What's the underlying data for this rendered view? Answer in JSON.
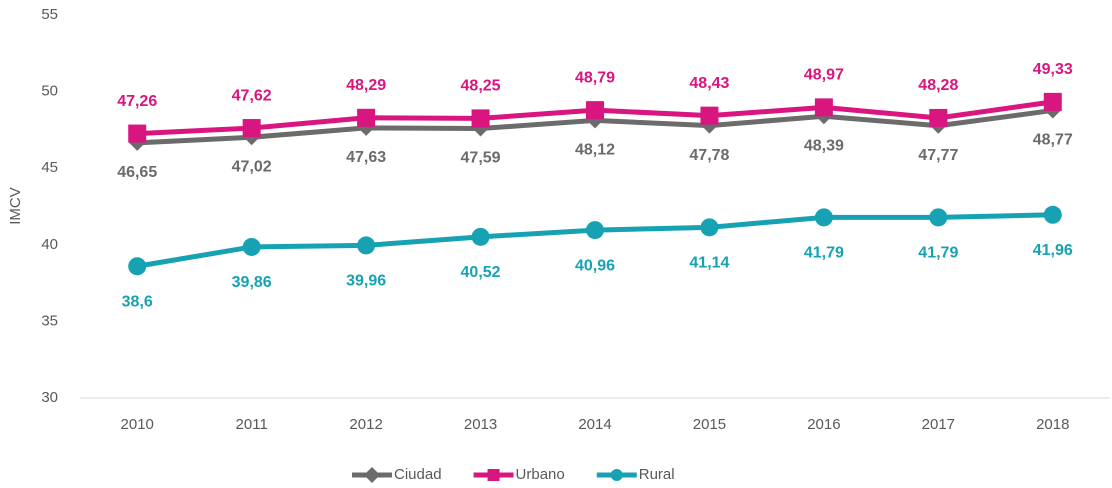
{
  "chart_data": {
    "type": "line",
    "y_label": "IMCV",
    "categories": [
      "2010",
      "2011",
      "2012",
      "2013",
      "2014",
      "2015",
      "2016",
      "2017",
      "2018"
    ],
    "ylim": [
      30,
      55
    ],
    "yticks": [
      30,
      35,
      40,
      45,
      50,
      55
    ],
    "grid": false,
    "legend": "bottom",
    "series": [
      {
        "name": "Ciudad",
        "color": "#6b6b6b",
        "marker": "diamond",
        "label_position": "below",
        "values": [
          46.65,
          47.02,
          47.63,
          47.59,
          48.12,
          47.78,
          48.39,
          47.77,
          48.77
        ],
        "value_labels": [
          "46,65",
          "47,02",
          "47,63",
          "47,59",
          "48,12",
          "47,78",
          "48,39",
          "47,77",
          "48,77"
        ]
      },
      {
        "name": "Urbano",
        "color": "#d9157f",
        "marker": "square",
        "label_position": "above",
        "values": [
          47.26,
          47.62,
          48.29,
          48.25,
          48.79,
          48.43,
          48.97,
          48.28,
          49.33
        ],
        "value_labels": [
          "47,26",
          "47,62",
          "48,29",
          "48,25",
          "48,79",
          "48,43",
          "48,97",
          "48,28",
          "49,33"
        ]
      },
      {
        "name": "Rural",
        "color": "#17a2b3",
        "marker": "circle",
        "label_position": "below",
        "values": [
          38.6,
          39.86,
          39.96,
          40.52,
          40.96,
          41.14,
          41.79,
          41.79,
          41.96
        ],
        "value_labels": [
          "38,6",
          "39,86",
          "39,96",
          "40,52",
          "40,96",
          "41,14",
          "41,79",
          "41,79",
          "41,96"
        ]
      }
    ]
  }
}
